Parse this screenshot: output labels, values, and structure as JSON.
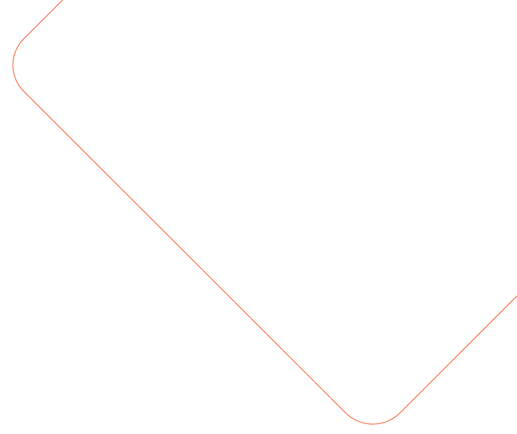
{
  "shape": {
    "type": "rotated-rounded-square-outline",
    "stroke_color": "#f4511e",
    "fill": "none"
  }
}
